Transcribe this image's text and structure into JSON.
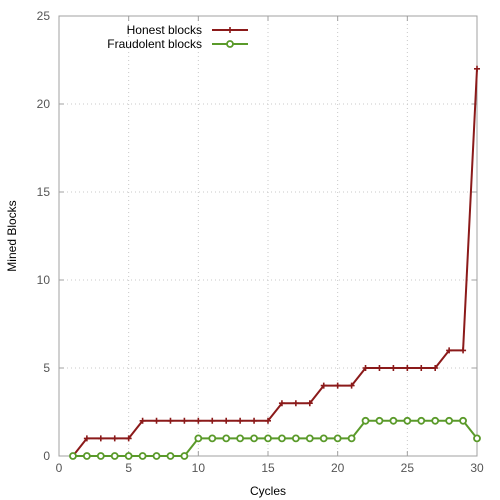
{
  "chart_data": {
    "type": "line",
    "title": "",
    "xlabel": "Cycles",
    "ylabel": "Mined Blocks",
    "xlim": [
      0,
      30
    ],
    "ylim": [
      0,
      25
    ],
    "xticks": [
      0,
      5,
      10,
      15,
      20,
      25,
      30
    ],
    "yticks": [
      0,
      5,
      10,
      15,
      20,
      25
    ],
    "grid": true,
    "legend_position": "top-left",
    "x": [
      1,
      2,
      3,
      4,
      5,
      6,
      7,
      8,
      9,
      10,
      11,
      12,
      13,
      14,
      15,
      16,
      17,
      18,
      19,
      20,
      21,
      22,
      23,
      24,
      25,
      26,
      27,
      28,
      29,
      30
    ],
    "series": [
      {
        "name": "Honest blocks",
        "color": "#8b1a1a",
        "marker": "plus",
        "values": [
          0,
          1,
          1,
          1,
          1,
          2,
          2,
          2,
          2,
          2,
          2,
          2,
          2,
          2,
          2,
          3,
          3,
          3,
          4,
          4,
          4,
          5,
          5,
          5,
          5,
          5,
          5,
          6,
          6,
          22
        ]
      },
      {
        "name": "Fraudolent blocks",
        "color": "#5a9a2a",
        "marker": "circle",
        "values": [
          0,
          0,
          0,
          0,
          0,
          0,
          0,
          0,
          0,
          1,
          1,
          1,
          1,
          1,
          1,
          1,
          1,
          1,
          1,
          1,
          1,
          2,
          2,
          2,
          2,
          2,
          2,
          2,
          2,
          1
        ]
      }
    ]
  }
}
